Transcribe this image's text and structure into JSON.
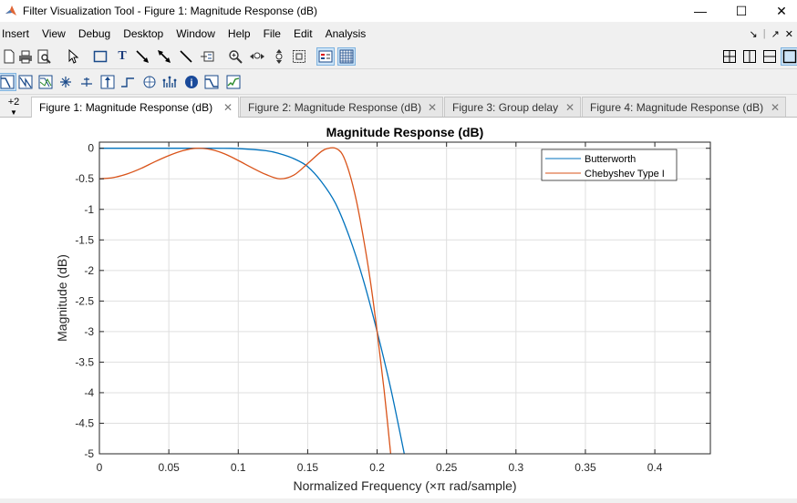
{
  "window": {
    "title": "Filter Visualization Tool - Figure 1: Magnitude Response (dB)",
    "icon": "matlab-icon",
    "controls": {
      "minimize": "—",
      "maximize": "☐",
      "close": "✕"
    }
  },
  "menu": {
    "items": [
      "Insert",
      "View",
      "Debug",
      "Desktop",
      "Window",
      "Help",
      "File",
      "Edit",
      "Analysis"
    ],
    "right": [
      "↘",
      "|",
      "↗",
      "✕"
    ]
  },
  "toolbar1": {
    "icons": [
      "new-file-icon",
      "print-icon",
      "print-preview-icon",
      "pointer-icon",
      "rectangle-icon",
      "text-icon",
      "arrow-icon",
      "double-arrow-icon",
      "line-icon",
      "legend-icon",
      "zoom-in-icon",
      "zoom-x-icon",
      "zoom-y-icon",
      "full-view-icon",
      "legend-toggle-icon",
      "grid-toggle-icon"
    ],
    "right_icons": [
      "tile-icon",
      "split-vertical-icon",
      "split-horizontal-icon",
      "single-view-icon"
    ]
  },
  "toolbar2": {
    "icons": [
      "magnitude-response-icon",
      "phase-response-icon",
      "magnitude-phase-icon",
      "group-delay-icon",
      "phase-delay-icon",
      "impulse-response-icon",
      "step-response-icon",
      "pole-zero-icon",
      "coefficients-icon",
      "info-icon",
      "round-off-noise-icon",
      "magnitude-estimate-icon"
    ]
  },
  "tabs": {
    "overflow_label": "+2",
    "items": [
      {
        "label": "Figure 1: Magnitude Response (dB)",
        "active": true
      },
      {
        "label": "Figure 2: Magnitude Response (dB)",
        "active": false
      },
      {
        "label": "Figure 3: Group delay",
        "active": false
      },
      {
        "label": "Figure 4: Magnitude Response (dB)",
        "active": false
      }
    ],
    "close_glyph": "✕"
  },
  "chart_data": {
    "type": "line",
    "title": "Magnitude Response (dB)",
    "xlabel": "Normalized Frequency (×π rad/sample)",
    "ylabel": "Magnitude (dB)",
    "xlim": [
      0,
      0.44
    ],
    "ylim": [
      -5,
      0.1
    ],
    "xticks": [
      0,
      0.05,
      0.1,
      0.15,
      0.2,
      0.25,
      0.3,
      0.35,
      0.4
    ],
    "xtick_labels": [
      "0",
      "0.05",
      "0.1",
      "0.15",
      "0.2",
      "0.25",
      "0.3",
      "0.35",
      "0.4"
    ],
    "yticks": [
      0,
      -0.5,
      -1,
      -1.5,
      -2,
      -2.5,
      -3,
      -3.5,
      -4,
      -4.5,
      -5
    ],
    "ytick_labels": [
      "0",
      "-0.5",
      "-1",
      "-1.5",
      "-2",
      "-2.5",
      "-3",
      "-3.5",
      "-4",
      "-4.5",
      "-5"
    ],
    "grid": true,
    "legend_position": "top-right",
    "series": [
      {
        "name": "Butterworth",
        "color": "#0072bd",
        "x": [
          0,
          0.08,
          0.1,
          0.12,
          0.13,
          0.14,
          0.15,
          0.16,
          0.17,
          0.18,
          0.19,
          0.2,
          0.21,
          0.22
        ],
        "y": [
          0,
          0,
          -0.005,
          -0.04,
          -0.09,
          -0.17,
          -0.3,
          -0.55,
          -0.9,
          -1.45,
          -2.15,
          -3.0,
          -3.95,
          -5.05
        ]
      },
      {
        "name": "Chebyshev Type I",
        "color": "#d95319",
        "x": [
          0,
          0.01,
          0.02,
          0.03,
          0.04,
          0.05,
          0.06,
          0.07,
          0.08,
          0.09,
          0.1,
          0.11,
          0.12,
          0.13,
          0.14,
          0.15,
          0.16,
          0.165,
          0.17,
          0.175,
          0.18,
          0.185,
          0.19,
          0.195,
          0.2,
          0.205,
          0.21
        ],
        "y": [
          -0.5,
          -0.48,
          -0.42,
          -0.33,
          -0.22,
          -0.12,
          -0.04,
          0,
          -0.02,
          -0.09,
          -0.2,
          -0.32,
          -0.43,
          -0.5,
          -0.44,
          -0.25,
          -0.05,
          0,
          0,
          -0.1,
          -0.4,
          -0.85,
          -1.45,
          -2.15,
          -3.0,
          -3.95,
          -5.05
        ]
      }
    ]
  }
}
